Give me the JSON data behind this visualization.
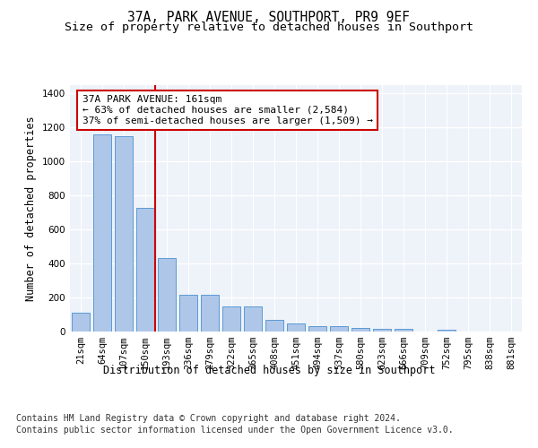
{
  "title": "37A, PARK AVENUE, SOUTHPORT, PR9 9EF",
  "subtitle": "Size of property relative to detached houses in Southport",
  "xlabel": "Distribution of detached houses by size in Southport",
  "ylabel": "Number of detached properties",
  "footer_line1": "Contains HM Land Registry data © Crown copyright and database right 2024.",
  "footer_line2": "Contains public sector information licensed under the Open Government Licence v3.0.",
  "categories": [
    "21sqm",
    "64sqm",
    "107sqm",
    "150sqm",
    "193sqm",
    "236sqm",
    "279sqm",
    "322sqm",
    "365sqm",
    "408sqm",
    "451sqm",
    "494sqm",
    "537sqm",
    "580sqm",
    "623sqm",
    "666sqm",
    "709sqm",
    "752sqm",
    "795sqm",
    "838sqm",
    "881sqm"
  ],
  "values": [
    110,
    1160,
    1150,
    730,
    430,
    215,
    215,
    150,
    150,
    70,
    50,
    30,
    30,
    20,
    15,
    15,
    0,
    10,
    0,
    0,
    0
  ],
  "bar_color": "#aec6e8",
  "bar_edge_color": "#5b9bd5",
  "annotation_text": "37A PARK AVENUE: 161sqm\n← 63% of detached houses are smaller (2,584)\n37% of semi-detached houses are larger (1,509) →",
  "vline_color": "#cc0000",
  "annotation_box_color": "#cc0000",
  "ylim": [
    0,
    1450
  ],
  "yticks": [
    0,
    200,
    400,
    600,
    800,
    1000,
    1200,
    1400
  ],
  "background_color": "#eef2f9",
  "grid_color": "#ffffff",
  "title_fontsize": 10.5,
  "subtitle_fontsize": 9.5,
  "axis_label_fontsize": 8.5,
  "tick_fontsize": 7.5,
  "footer_fontsize": 7.0,
  "annotation_fontsize": 8.0
}
